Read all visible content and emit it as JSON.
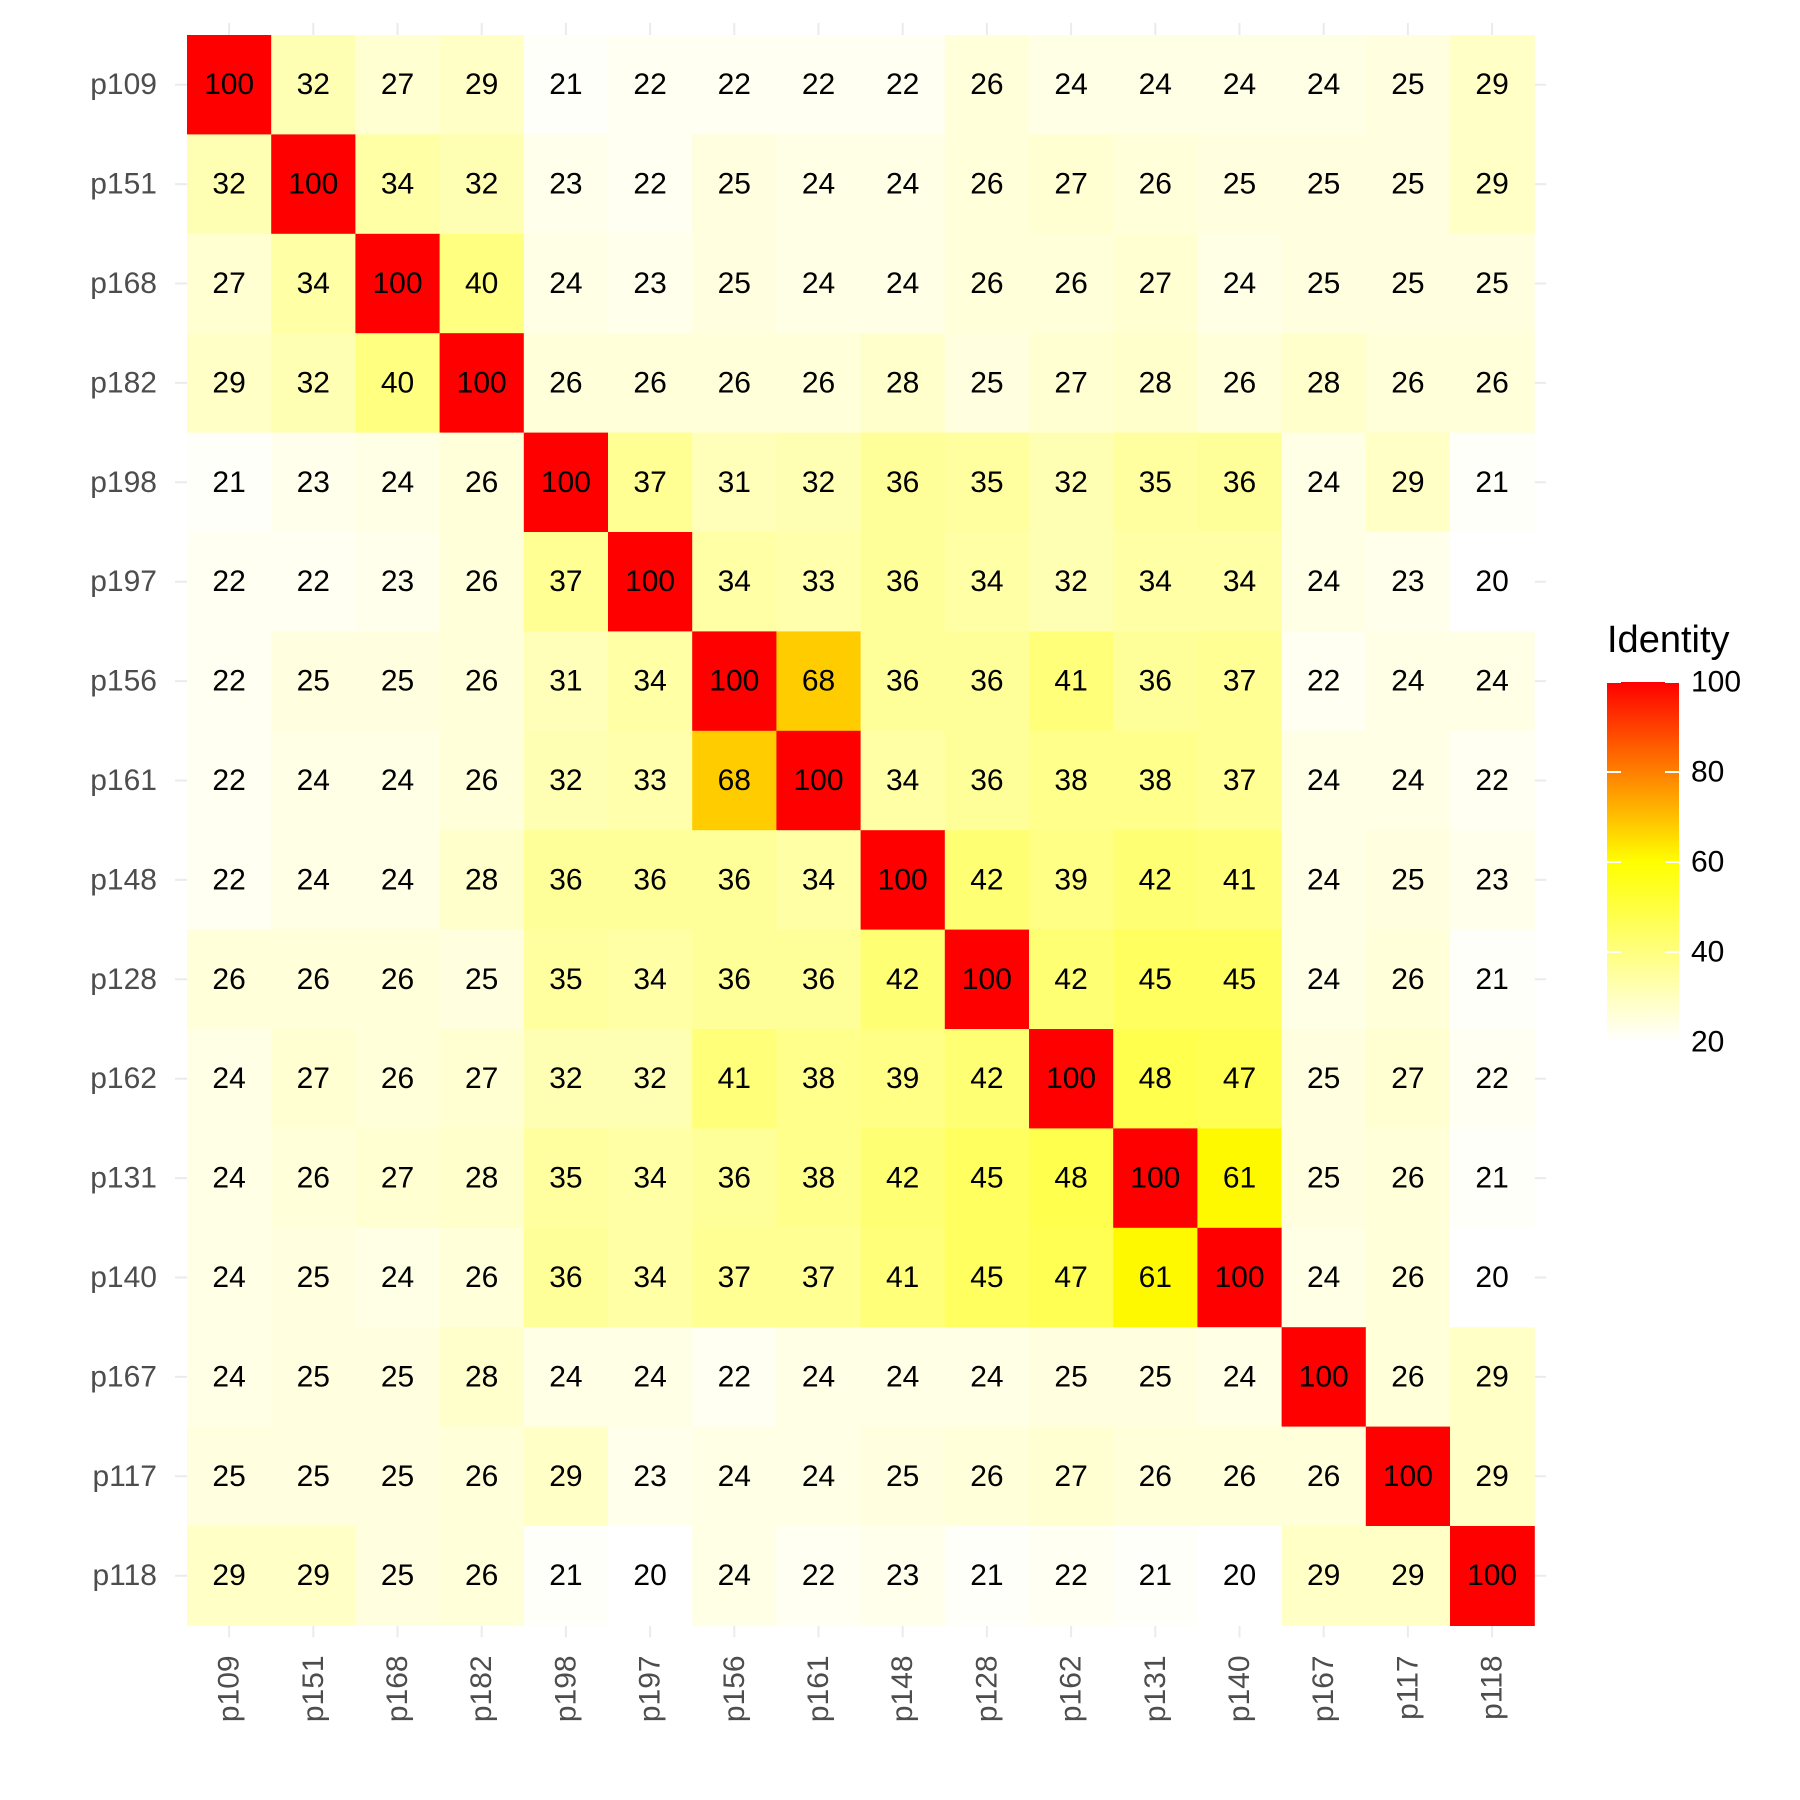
{
  "chart_data": {
    "type": "heatmap",
    "title": "",
    "xlabel": "",
    "ylabel": "",
    "x_categories": [
      "p109",
      "p151",
      "p168",
      "p182",
      "p198",
      "p197",
      "p156",
      "p161",
      "p148",
      "p128",
      "p162",
      "p131",
      "p140",
      "p167",
      "p117",
      "p118"
    ],
    "y_categories": [
      "p109",
      "p151",
      "p168",
      "p182",
      "p198",
      "p197",
      "p156",
      "p161",
      "p148",
      "p128",
      "p162",
      "p131",
      "p140",
      "p167",
      "p117",
      "p118"
    ],
    "values": [
      [
        100,
        32,
        27,
        29,
        21,
        22,
        22,
        22,
        22,
        26,
        24,
        24,
        24,
        24,
        25,
        29
      ],
      [
        32,
        100,
        34,
        32,
        23,
        22,
        25,
        24,
        24,
        26,
        27,
        26,
        25,
        25,
        25,
        29
      ],
      [
        27,
        34,
        100,
        40,
        24,
        23,
        25,
        24,
        24,
        26,
        26,
        27,
        24,
        25,
        25,
        25
      ],
      [
        29,
        32,
        40,
        100,
        26,
        26,
        26,
        26,
        28,
        25,
        27,
        28,
        26,
        28,
        26,
        26
      ],
      [
        21,
        23,
        24,
        26,
        100,
        37,
        31,
        32,
        36,
        35,
        32,
        35,
        36,
        24,
        29,
        21
      ],
      [
        22,
        22,
        23,
        26,
        37,
        100,
        34,
        33,
        36,
        34,
        32,
        34,
        34,
        24,
        23,
        20
      ],
      [
        22,
        25,
        25,
        26,
        31,
        34,
        100,
        68,
        36,
        36,
        41,
        36,
        37,
        22,
        24,
        24
      ],
      [
        22,
        24,
        24,
        26,
        32,
        33,
        68,
        100,
        34,
        36,
        38,
        38,
        37,
        24,
        24,
        22
      ],
      [
        22,
        24,
        24,
        28,
        36,
        36,
        36,
        34,
        100,
        42,
        39,
        42,
        41,
        24,
        25,
        23
      ],
      [
        26,
        26,
        26,
        25,
        35,
        34,
        36,
        36,
        42,
        100,
        42,
        45,
        45,
        24,
        26,
        21
      ],
      [
        24,
        27,
        26,
        27,
        32,
        32,
        41,
        38,
        39,
        42,
        100,
        48,
        47,
        25,
        27,
        22
      ],
      [
        24,
        26,
        27,
        28,
        35,
        34,
        36,
        38,
        42,
        45,
        48,
        100,
        61,
        25,
        26,
        21
      ],
      [
        24,
        25,
        24,
        26,
        36,
        34,
        37,
        37,
        41,
        45,
        47,
        61,
        100,
        24,
        26,
        20
      ],
      [
        24,
        25,
        25,
        28,
        24,
        24,
        22,
        24,
        24,
        24,
        25,
        25,
        24,
        100,
        26,
        29
      ],
      [
        25,
        25,
        25,
        26,
        29,
        23,
        24,
        24,
        25,
        26,
        27,
        26,
        26,
        26,
        100,
        29
      ],
      [
        29,
        29,
        25,
        26,
        21,
        20,
        24,
        22,
        23,
        21,
        22,
        21,
        20,
        29,
        29,
        100
      ]
    ],
    "grid": true,
    "legend": {
      "title": "Identity",
      "placement": "right",
      "range": [
        20,
        100
      ],
      "ticks": [
        20,
        40,
        60,
        80,
        100
      ],
      "colors": [
        "#ffffff",
        "#ffff00",
        "#ff0000"
      ]
    }
  }
}
